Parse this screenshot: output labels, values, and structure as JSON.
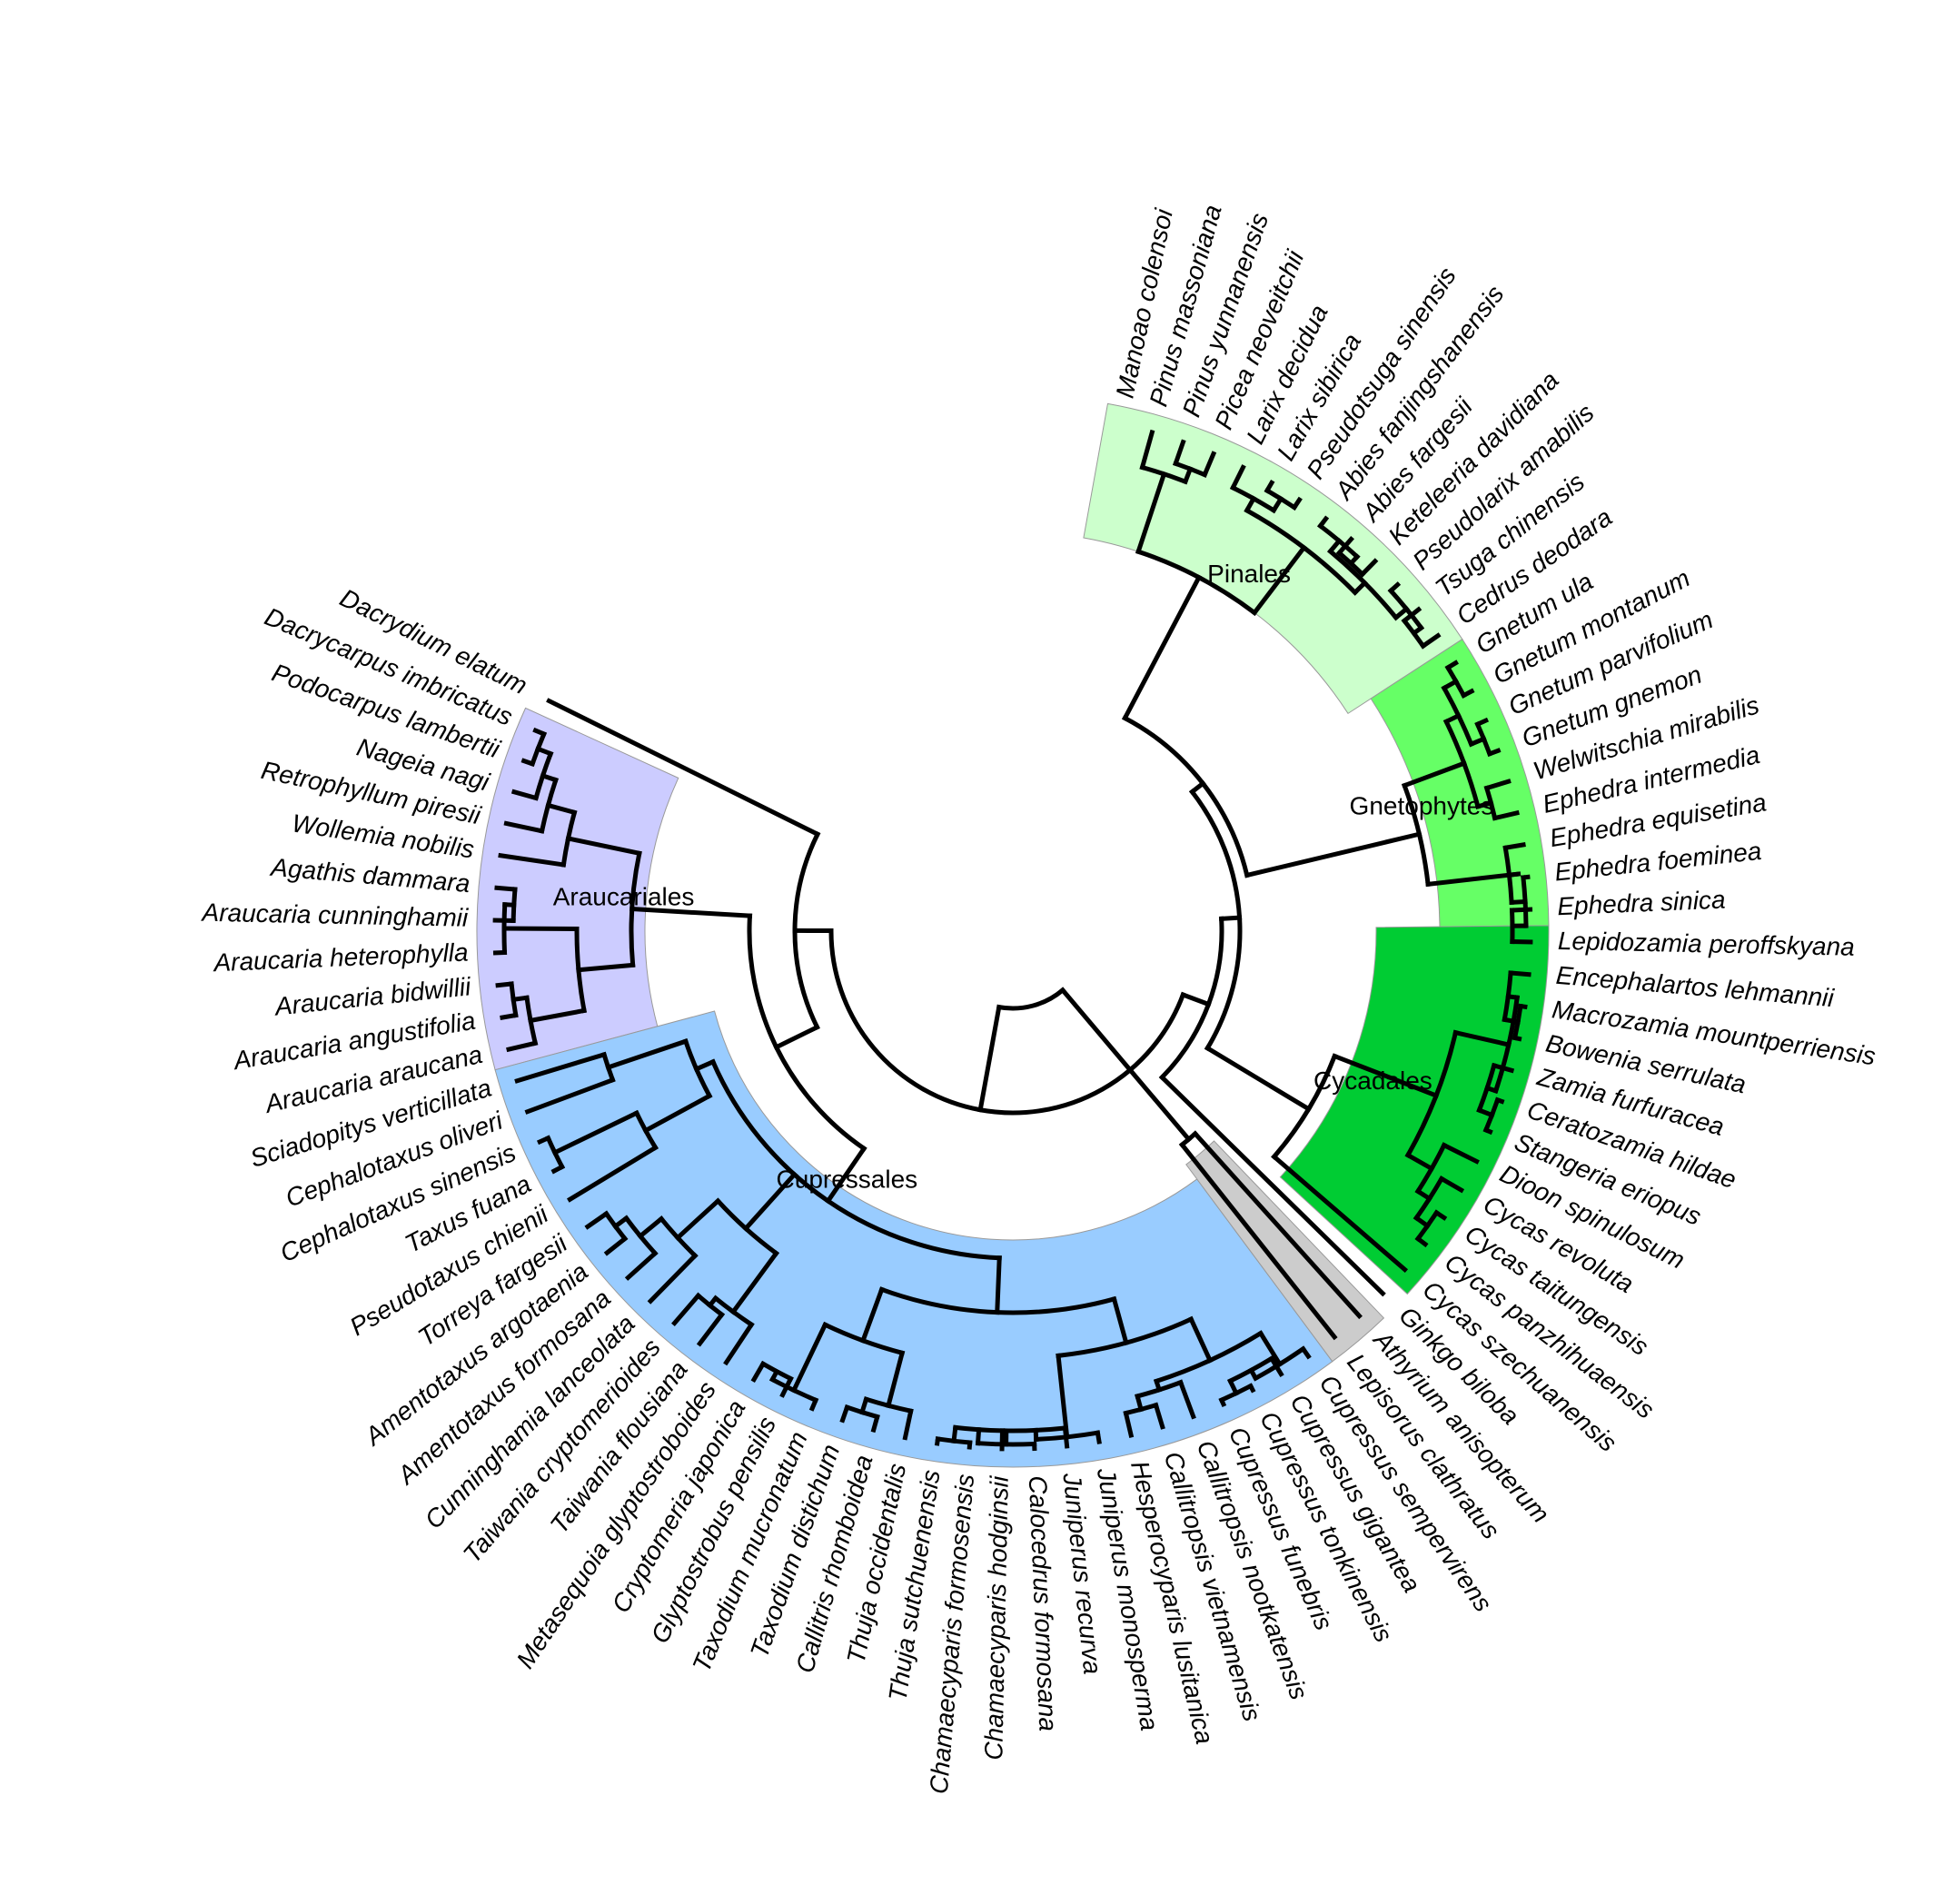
{
  "clades": [
    {
      "name": "Araucariales",
      "color": "#ccccff"
    },
    {
      "name": "Pinales",
      "color": "#ccffcc"
    },
    {
      "name": "Gnetophytes",
      "color": "#66ff66"
    },
    {
      "name": "Cycadales",
      "color": "#00cc33"
    },
    {
      "name": "Cupressales",
      "color": "#99ccff"
    },
    {
      "name": "",
      "color": "#cccccc"
    }
  ],
  "taxa": [
    "Manoao colensoi",
    "Pinus massoniana",
    "Pinus yunnanensis",
    "Picea neoveitchii",
    "Larix decidua",
    "Larix sibirica",
    "Pseudotsuga sinensis",
    "Abies fanjingshanensis",
    "Abies fargesii",
    "Keteleeria davidiana",
    "Pseudolarix amabilis",
    "Tsuga chinensis",
    "Cedrus deodara",
    "Gnetum ula",
    "Gnetum montanum",
    "Gnetum parvifolium",
    "Gnetum gnemon",
    "Welwitschia mirabilis",
    "Ephedra intermedia",
    "Ephedra equisetina",
    "Ephedra foeminea",
    "Ephedra sinica",
    "Lepidozamia peroffskyana",
    "Encephalartos lehmannii",
    "Macrozamia mountperriensis",
    "Bowenia serrulata",
    "Zamia furfuracea",
    "Ceratozamia hildae",
    "Stangeria eriopus",
    "Dioon spinulosum",
    "Cycas revoluta",
    "Cycas taitungensis",
    "Cycas panzhihuaensis",
    "Cycas szechuanensis",
    "Ginkgo biloba",
    "Athyrium anisopterum",
    "Lepisorus clathratus",
    "Cupressus sempervirens",
    "Cupressus gigantea",
    "Cupressus tonkinensis",
    "Cupressus funebris",
    "Callitropsis nootkatensis",
    "Callitropsis vietnamensis",
    "Hesperocyparis lusitanica",
    "Juniperus monosperma",
    "Juniperus recurva",
    "Calocedrus formosana",
    "Chamaecyparis hodginsii",
    "Chamaecyparis formosensis",
    "Thuja sutchuenensis",
    "Thuja occidentalis",
    "Callitris rhomboidea",
    "Taxodium distichum",
    "Taxodium mucronatum",
    "Glyptostrobus pensilis",
    "Cryptomeria japonica",
    "Metasequoia glyptostroboides",
    "Taiwania flousiana",
    "Taiwania cryptomerioides",
    "Cunninghamia lanceolata",
    "Amentotaxus formosana",
    "Amentotaxus argotaenia",
    "Torreya fargesii",
    "Pseudotaxus chienii",
    "Taxus fuana",
    "Cephalotaxus sinensis",
    "Cephalotaxus oliveri",
    "Sciadopitys verticillata",
    "Araucaria araucana",
    "Araucaria angustifolia",
    "Araucaria bidwillii",
    "Araucaria heterophylla",
    "Araucaria cunninghamii",
    "Agathis dammara",
    "Wollemia nobilis",
    "Retrophyllum piresii",
    "Nageia nagi",
    "Podocarpus lambertii",
    "Dacrycarpus imbricatus",
    "Dacrydium elatum"
  ]
}
